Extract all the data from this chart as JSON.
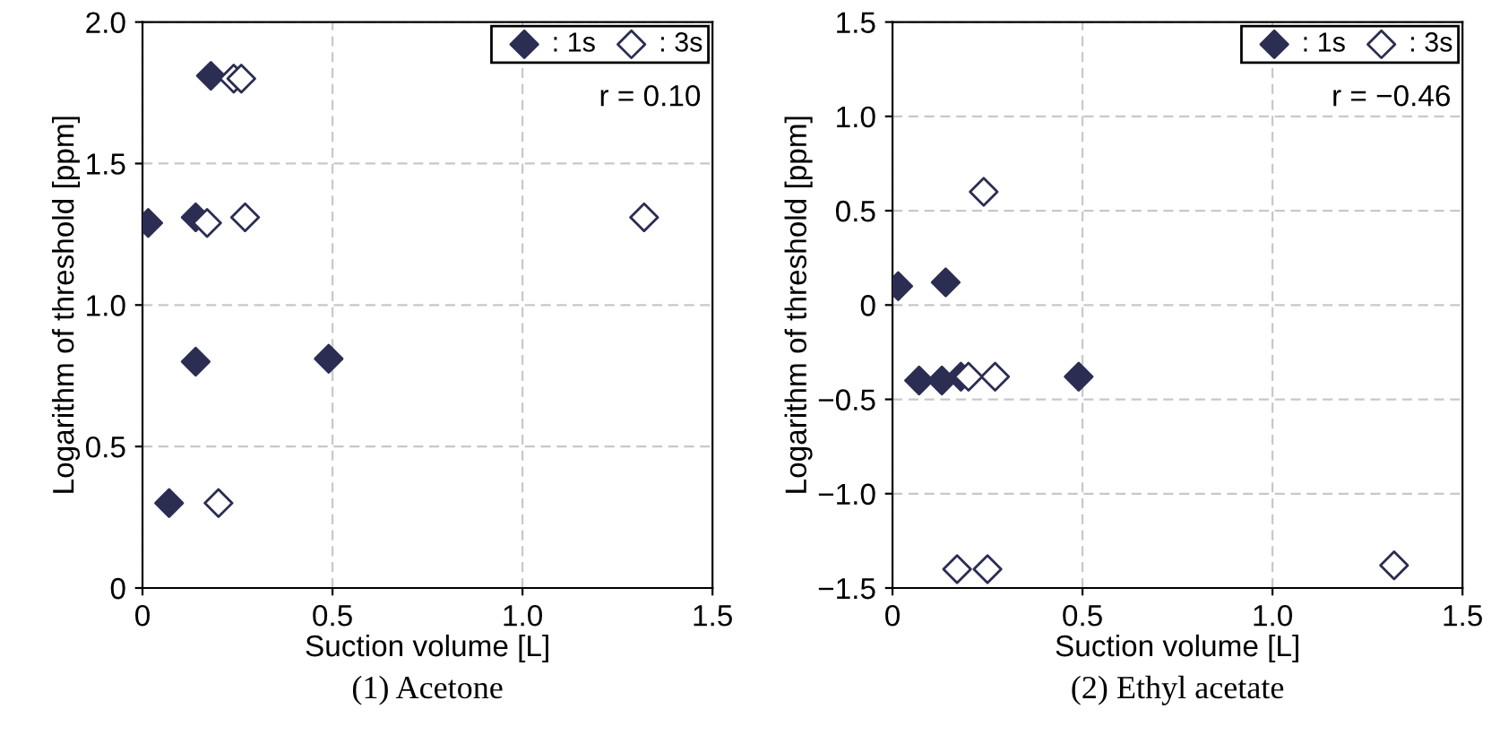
{
  "chart_data": [
    {
      "type": "scatter",
      "title": "(1) Acetone",
      "xlabel": "Suction volume [L]",
      "ylabel": "Logarithm of threshold [ppm]",
      "xlim": [
        0,
        1.5
      ],
      "xticks": [
        0,
        0.5,
        {
          "value": 1.0,
          "label": "1.0"
        },
        1.5
      ],
      "ylim": [
        0,
        2.0
      ],
      "yticks": [
        0,
        0.5,
        {
          "value": 1.0,
          "label": "1.0"
        },
        1.5,
        {
          "value": 2.0,
          "label": "2.0"
        }
      ],
      "grid": true,
      "legend": "top right",
      "marker": "diamond",
      "annotations": [
        "r = 0.10"
      ],
      "series": [
        {
          "name": ": 1s",
          "color": "#2b2d52",
          "x": [
            0.015,
            0.14,
            0.18,
            0.14,
            0.49,
            0.07
          ],
          "values": [
            1.29,
            1.31,
            1.81,
            0.8,
            0.81,
            0.3
          ]
        },
        {
          "name": ": 3s",
          "color": "#2b2d52",
          "x": [
            0.24,
            0.26,
            0.17,
            0.27,
            1.32,
            0.2
          ],
          "values": [
            1.8,
            1.8,
            1.29,
            1.31,
            1.31,
            0.3
          ]
        }
      ]
    },
    {
      "type": "scatter",
      "title": "(2) Ethyl acetate",
      "xlabel": "Suction volume [L]",
      "ylabel": "Logarithm of threshold [ppm]",
      "xlim": [
        0,
        1.5
      ],
      "xticks": [
        0,
        0.5,
        {
          "value": 1.0,
          "label": "1.0"
        },
        1.5
      ],
      "ylim": [
        -1.5,
        1.5
      ],
      "yticks": [
        -1.5,
        {
          "value": -1.0,
          "label": "−1.0"
        },
        -0.5,
        0,
        0.5,
        {
          "value": 1.0,
          "label": "1.0"
        },
        1.5
      ],
      "grid": true,
      "legend": "top right",
      "marker": "diamond",
      "annotations": [
        "r = −0.46"
      ],
      "series": [
        {
          "name": ": 1s",
          "color": "#2b2d52",
          "x": [
            0.015,
            0.14,
            0.07,
            0.13,
            0.18,
            0.49
          ],
          "values": [
            0.1,
            0.12,
            -0.4,
            -0.4,
            -0.38,
            -0.38
          ]
        },
        {
          "name": ": 3s",
          "color": "#2b2d52",
          "x": [
            0.24,
            0.2,
            0.27,
            0.17,
            0.25,
            1.32
          ],
          "values": [
            0.6,
            -0.38,
            -0.38,
            -1.4,
            -1.4,
            -1.38
          ]
        }
      ]
    }
  ]
}
